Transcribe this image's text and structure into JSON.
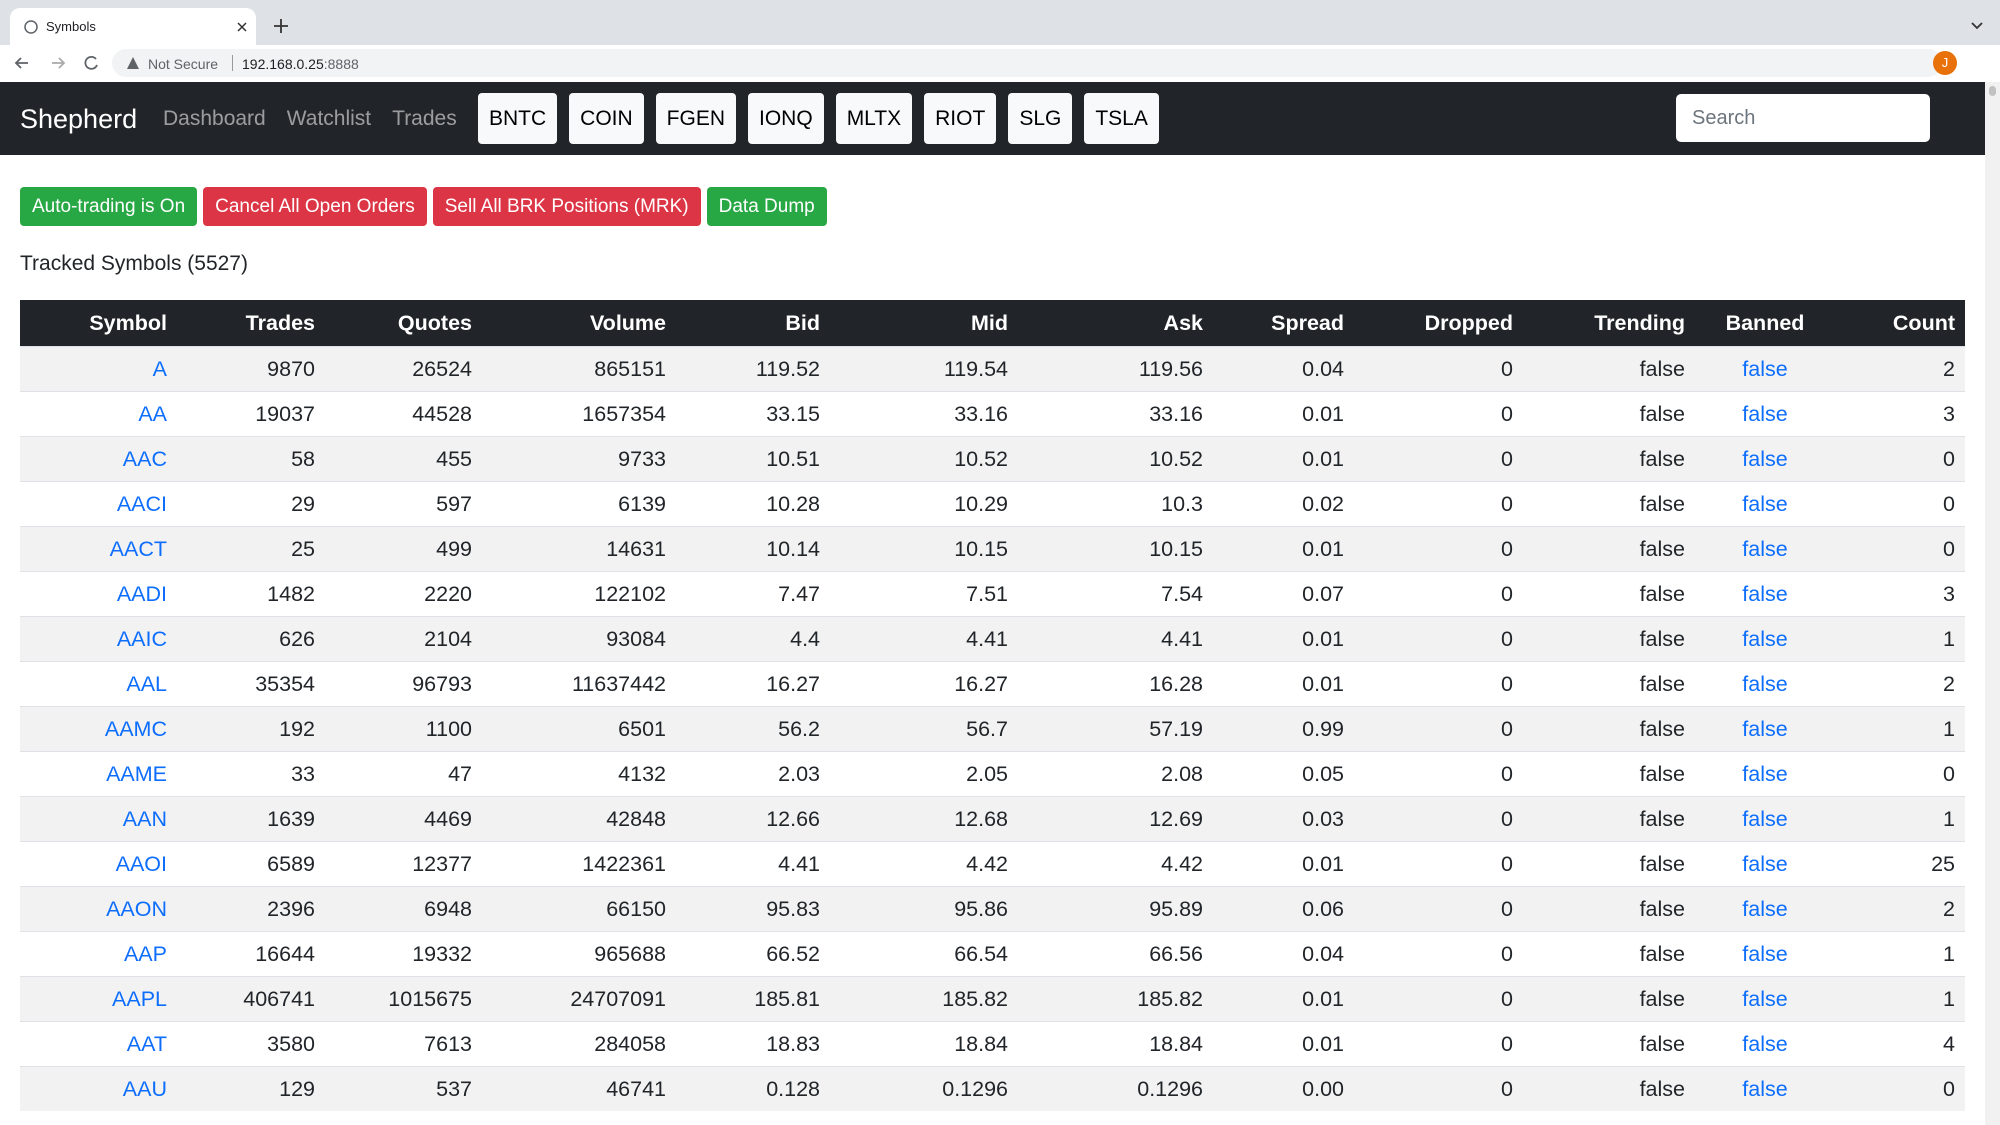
{
  "browser": {
    "tab_title": "Symbols",
    "security": "Not Secure",
    "url_host": "192.168.0.25",
    "url_port": ":8888",
    "profile_initial": "J"
  },
  "navbar": {
    "brand": "Shepherd",
    "links": [
      "Dashboard",
      "Watchlist",
      "Trades"
    ],
    "symbols": [
      "BNTC",
      "COIN",
      "FGEN",
      "IONQ",
      "MLTX",
      "RIOT",
      "SLG",
      "TSLA"
    ],
    "search_placeholder": "Search"
  },
  "actions": [
    {
      "label": "Auto-trading is On",
      "style": "green"
    },
    {
      "label": "Cancel All Open Orders",
      "style": "red"
    },
    {
      "label": "Sell All BRK Positions (MRK)",
      "style": "red"
    },
    {
      "label": "Data Dump",
      "style": "green"
    }
  ],
  "heading": "Tracked Symbols (5527)",
  "table": {
    "columns": [
      "Symbol",
      "Trades",
      "Quotes",
      "Volume",
      "Bid",
      "Mid",
      "Ask",
      "Spread",
      "Dropped",
      "Trending",
      "Banned",
      "Count"
    ],
    "rows": [
      [
        "A",
        "9870",
        "26524",
        "865151",
        "119.52",
        "119.54",
        "119.56",
        "0.04",
        "0",
        "false",
        "false",
        "2"
      ],
      [
        "AA",
        "19037",
        "44528",
        "1657354",
        "33.15",
        "33.16",
        "33.16",
        "0.01",
        "0",
        "false",
        "false",
        "3"
      ],
      [
        "AAC",
        "58",
        "455",
        "9733",
        "10.51",
        "10.52",
        "10.52",
        "0.01",
        "0",
        "false",
        "false",
        "0"
      ],
      [
        "AACI",
        "29",
        "597",
        "6139",
        "10.28",
        "10.29",
        "10.3",
        "0.02",
        "0",
        "false",
        "false",
        "0"
      ],
      [
        "AACT",
        "25",
        "499",
        "14631",
        "10.14",
        "10.15",
        "10.15",
        "0.01",
        "0",
        "false",
        "false",
        "0"
      ],
      [
        "AADI",
        "1482",
        "2220",
        "122102",
        "7.47",
        "7.51",
        "7.54",
        "0.07",
        "0",
        "false",
        "false",
        "3"
      ],
      [
        "AAIC",
        "626",
        "2104",
        "93084",
        "4.4",
        "4.41",
        "4.41",
        "0.01",
        "0",
        "false",
        "false",
        "1"
      ],
      [
        "AAL",
        "35354",
        "96793",
        "11637442",
        "16.27",
        "16.27",
        "16.28",
        "0.01",
        "0",
        "false",
        "false",
        "2"
      ],
      [
        "AAMC",
        "192",
        "1100",
        "6501",
        "56.2",
        "56.7",
        "57.19",
        "0.99",
        "0",
        "false",
        "false",
        "1"
      ],
      [
        "AAME",
        "33",
        "47",
        "4132",
        "2.03",
        "2.05",
        "2.08",
        "0.05",
        "0",
        "false",
        "false",
        "0"
      ],
      [
        "AAN",
        "1639",
        "4469",
        "42848",
        "12.66",
        "12.68",
        "12.69",
        "0.03",
        "0",
        "false",
        "false",
        "1"
      ],
      [
        "AAOI",
        "6589",
        "12377",
        "1422361",
        "4.41",
        "4.42",
        "4.42",
        "0.01",
        "0",
        "false",
        "false",
        "25"
      ],
      [
        "AAON",
        "2396",
        "6948",
        "66150",
        "95.83",
        "95.86",
        "95.89",
        "0.06",
        "0",
        "false",
        "false",
        "2"
      ],
      [
        "AAP",
        "16644",
        "19332",
        "965688",
        "66.52",
        "66.54",
        "66.56",
        "0.04",
        "0",
        "false",
        "false",
        "1"
      ],
      [
        "AAPL",
        "406741",
        "1015675",
        "24707091",
        "185.81",
        "185.82",
        "185.82",
        "0.01",
        "0",
        "false",
        "false",
        "1"
      ],
      [
        "AAT",
        "3580",
        "7613",
        "284058",
        "18.83",
        "18.84",
        "18.84",
        "0.01",
        "0",
        "false",
        "false",
        "4"
      ],
      [
        "AAU",
        "129",
        "537",
        "46741",
        "0.128",
        "0.1296",
        "0.1296",
        "0.00",
        "0",
        "false",
        "false",
        "0"
      ]
    ]
  }
}
